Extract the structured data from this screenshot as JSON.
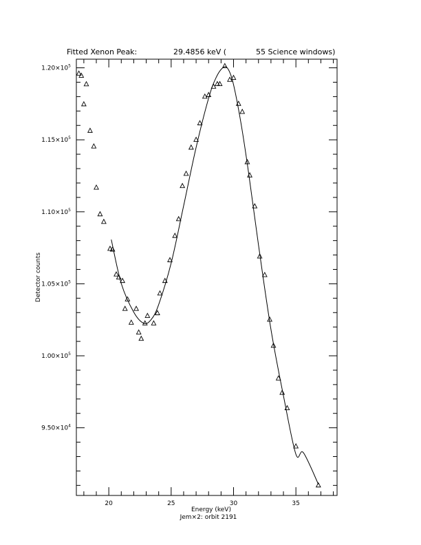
{
  "title": {
    "prefix": "Fitted Xenon Peak:",
    "energy": "29.4856 keV (",
    "windows": "55 Science windows)"
  },
  "footer": "Jem×2: orbit 2191",
  "chart_data": {
    "type": "scatter",
    "xlabel": "Energy (keV)",
    "ylabel": "Detector counts",
    "xlim": [
      17.4,
      38.3
    ],
    "ylim": [
      90300,
      120600
    ],
    "x_ticks": [
      {
        "value": 20,
        "label": "20"
      },
      {
        "value": 25,
        "label": "25"
      },
      {
        "value": 30,
        "label": "30"
      },
      {
        "value": 35,
        "label": "35"
      }
    ],
    "y_ticks": [
      {
        "value": 95000,
        "mantissa": "9.50×10",
        "exp": "4"
      },
      {
        "value": 100000,
        "mantissa": "1.00×10",
        "exp": "5"
      },
      {
        "value": 105000,
        "mantissa": "1.05×10",
        "exp": "5"
      },
      {
        "value": 110000,
        "mantissa": "1.10×10",
        "exp": "5"
      },
      {
        "value": 115000,
        "mantissa": "1.15×10",
        "exp": "5"
      },
      {
        "value": 120000,
        "mantissa": "1.20×10",
        "exp": "5"
      }
    ],
    "series": [
      {
        "marker": "triangle",
        "points": [
          [
            17.6,
            119610
          ],
          [
            17.8,
            119460
          ],
          [
            18.0,
            117480
          ],
          [
            18.2,
            118870
          ],
          [
            18.5,
            115640
          ],
          [
            18.8,
            114550
          ],
          [
            19.0,
            111690
          ],
          [
            19.3,
            109840
          ],
          [
            19.6,
            109310
          ],
          [
            20.1,
            107440
          ],
          [
            20.3,
            107390
          ],
          [
            20.6,
            105660
          ],
          [
            20.8,
            105450
          ],
          [
            21.1,
            105210
          ],
          [
            21.3,
            103270
          ],
          [
            21.5,
            103930
          ],
          [
            21.8,
            102310
          ],
          [
            22.2,
            103270
          ],
          [
            22.4,
            101630
          ],
          [
            22.6,
            101190
          ],
          [
            22.9,
            102260
          ],
          [
            23.1,
            102780
          ],
          [
            23.6,
            102260
          ],
          [
            23.9,
            102970
          ],
          [
            24.1,
            104340
          ],
          [
            24.5,
            105210
          ],
          [
            24.9,
            106650
          ],
          [
            25.3,
            108340
          ],
          [
            25.6,
            109500
          ],
          [
            25.9,
            111800
          ],
          [
            26.2,
            112650
          ],
          [
            26.6,
            114470
          ],
          [
            27.0,
            115010
          ],
          [
            27.3,
            116160
          ],
          [
            27.7,
            118010
          ],
          [
            28.0,
            118120
          ],
          [
            28.4,
            118700
          ],
          [
            28.7,
            118880
          ],
          [
            28.9,
            118880
          ],
          [
            29.3,
            120130
          ],
          [
            29.7,
            119180
          ],
          [
            30.0,
            119310
          ],
          [
            30.4,
            117510
          ],
          [
            30.7,
            116950
          ],
          [
            31.1,
            113460
          ],
          [
            31.3,
            112540
          ],
          [
            31.7,
            110390
          ],
          [
            32.1,
            106910
          ],
          [
            32.5,
            105620
          ],
          [
            32.9,
            102520
          ],
          [
            33.2,
            100710
          ],
          [
            33.6,
            98440
          ],
          [
            33.9,
            97440
          ],
          [
            34.3,
            96370
          ],
          [
            35.0,
            93720
          ],
          [
            36.8,
            91010
          ]
        ]
      },
      {
        "style": "line",
        "points": [
          [
            20.2,
            108070
          ],
          [
            21.0,
            105020
          ],
          [
            22.0,
            103030
          ],
          [
            22.8,
            102260
          ],
          [
            23.4,
            102520
          ],
          [
            24.0,
            103560
          ],
          [
            25.0,
            106440
          ],
          [
            26.0,
            110420
          ],
          [
            27.0,
            114470
          ],
          [
            28.0,
            117880
          ],
          [
            28.6,
            119320
          ],
          [
            29.2,
            120040
          ],
          [
            29.6,
            119860
          ],
          [
            30.0,
            118830
          ],
          [
            30.6,
            116140
          ],
          [
            31.2,
            112750
          ],
          [
            32.0,
            107700
          ],
          [
            33.0,
            101830
          ],
          [
            34.0,
            97230
          ],
          [
            35.0,
            93160
          ],
          [
            35.6,
            93270
          ],
          [
            36.8,
            91080
          ]
        ]
      }
    ]
  }
}
